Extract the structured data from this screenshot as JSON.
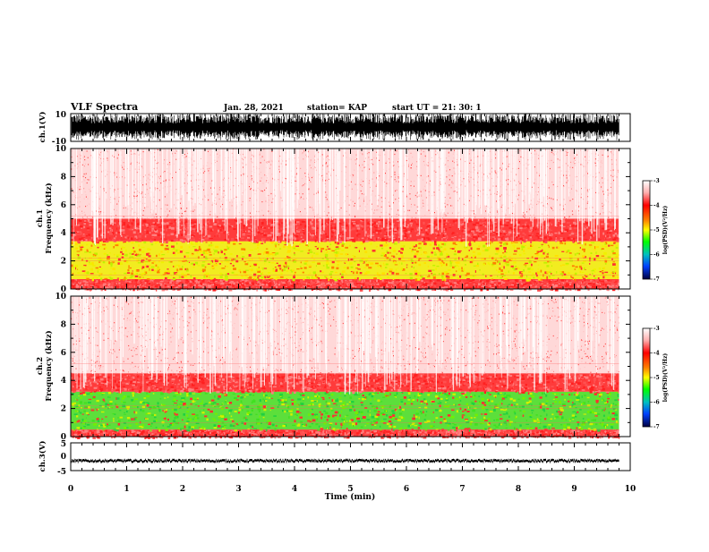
{
  "header": {
    "title": "VLF Spectra",
    "date": "Jan. 28, 2021",
    "station": "station= KAP",
    "start": "start UT =  21: 30: 1"
  },
  "chart_data": [
    {
      "type": "line",
      "name": "ch1-waveform",
      "ylabel": "ch.1(V)",
      "ylim": [
        -10,
        10
      ],
      "yticks": [
        "10",
        "-10"
      ],
      "xlim": [
        0,
        10
      ],
      "data_extent_min": 9.8,
      "description_values": {
        "typical_amplitude_range": [
          -10,
          10
        ],
        "dense_fill": true
      }
    },
    {
      "type": "heatmap",
      "name": "ch1-spectrogram",
      "ylabel": "ch.1\nFrequency (kHz)",
      "ylabel_top": "ch.1",
      "ylabel_main": "Frequency (kHz)",
      "ylim": [
        0,
        10
      ],
      "yticks": [
        "0",
        "2",
        "4",
        "6",
        "8",
        "10"
      ],
      "xlim": [
        0,
        10
      ],
      "bands": [
        {
          "from_khz": 0.0,
          "to_khz": 0.7,
          "level": "red"
        },
        {
          "from_khz": 0.7,
          "to_khz": 3.4,
          "level": "yellow-green"
        },
        {
          "from_khz": 3.4,
          "to_khz": 5.0,
          "level": "red"
        },
        {
          "from_khz": 5.0,
          "to_khz": 10.0,
          "level": "sparse-red"
        }
      ],
      "colorbar": {
        "label": "log(PSD)(V²/Hz)",
        "ticks": [
          "-3",
          "-4",
          "-5",
          "-6",
          "-7"
        ],
        "range": [
          -7,
          -3
        ]
      }
    },
    {
      "type": "heatmap",
      "name": "ch2-spectrogram",
      "ylabel_top": "ch.2",
      "ylabel_main": "Frequency (kHz)",
      "ylim": [
        0,
        10
      ],
      "yticks": [
        "0",
        "2",
        "4",
        "6",
        "8",
        "10"
      ],
      "xlim": [
        0,
        10
      ],
      "bands": [
        {
          "from_khz": 0.0,
          "to_khz": 0.5,
          "level": "red"
        },
        {
          "from_khz": 0.5,
          "to_khz": 3.2,
          "level": "green"
        },
        {
          "from_khz": 3.2,
          "to_khz": 4.5,
          "level": "red"
        },
        {
          "from_khz": 4.5,
          "to_khz": 10.0,
          "level": "sparse-red"
        }
      ],
      "colorbar": {
        "label": "log(PSD)(V²/Hz)",
        "ticks": [
          "-3",
          "-4",
          "-5",
          "-6",
          "-7"
        ],
        "range": [
          -7,
          -3
        ]
      }
    },
    {
      "type": "line",
      "name": "ch3-waveform",
      "ylabel": "ch.3(V)",
      "ylim": [
        -5,
        5
      ],
      "yticks": [
        "5",
        "0",
        "-5"
      ],
      "xlim": [
        0,
        10
      ],
      "typical_value": -1.5
    }
  ],
  "xaxis": {
    "label": "Time (min)",
    "ticks": [
      "0",
      "1",
      "2",
      "3",
      "4",
      "5",
      "6",
      "7",
      "8",
      "9",
      "10"
    ],
    "range": [
      0,
      10
    ]
  },
  "colors": {
    "red": "#ff2020",
    "yellow": "#f0f000",
    "green": "#40e020",
    "white": "#ffffff"
  }
}
